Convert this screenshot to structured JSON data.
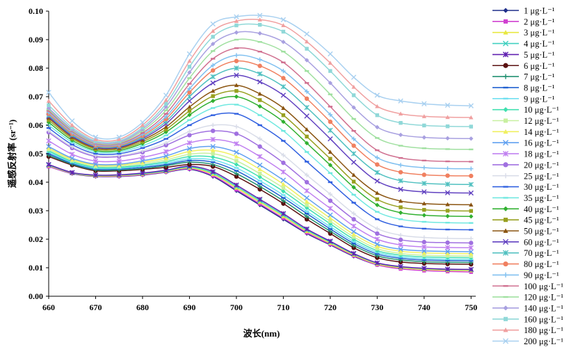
{
  "chart_data": {
    "type": "line",
    "xlabel": "波长(nm)",
    "ylabel": "遥感反射率 (sr⁻¹)",
    "xlim": [
      660,
      751
    ],
    "ylim": [
      0,
      0.1
    ],
    "x_ticks": [
      "660",
      "670",
      "680",
      "690",
      "700",
      "710",
      "720",
      "730",
      "740",
      "750"
    ],
    "y_ticks": [
      "0.00",
      "0.01",
      "0.02",
      "0.03",
      "0.04",
      "0.05",
      "0.06",
      "0.07",
      "0.08",
      "0.09",
      "0.10"
    ],
    "x": [
      660,
      665,
      670,
      675,
      680,
      685,
      690,
      695,
      700,
      705,
      710,
      715,
      720,
      725,
      730,
      735,
      740,
      745,
      750
    ],
    "series": [
      {
        "name": "1 μg·L⁻¹",
        "color": "#1f2f8a",
        "marker": "diamond",
        "values": [
          0.0455,
          0.043,
          0.042,
          0.042,
          0.0425,
          0.0435,
          0.0445,
          0.042,
          0.037,
          0.032,
          0.027,
          0.022,
          0.018,
          0.014,
          0.011,
          0.01,
          0.0095,
          0.0093,
          0.0092
        ]
      },
      {
        "name": "2 μg·L⁻¹",
        "color": "#d040d0",
        "marker": "square",
        "values": [
          0.0455,
          0.0431,
          0.0421,
          0.0421,
          0.0426,
          0.0436,
          0.0447,
          0.0423,
          0.0374,
          0.0324,
          0.0274,
          0.0223,
          0.0182,
          0.0142,
          0.011,
          0.0096,
          0.009,
          0.0087,
          0.0085
        ]
      },
      {
        "name": "3 μg·L⁻¹",
        "color": "#e8e840",
        "marker": "triangle",
        "values": [
          0.0458,
          0.0432,
          0.0422,
          0.0423,
          0.0428,
          0.0438,
          0.045,
          0.0428,
          0.038,
          0.033,
          0.028,
          0.0228,
          0.0186,
          0.0145,
          0.0113,
          0.01,
          0.0094,
          0.0091,
          0.009
        ]
      },
      {
        "name": "4 μg·L⁻¹",
        "color": "#40d0c0",
        "marker": "x",
        "values": [
          0.046,
          0.0433,
          0.0424,
          0.0425,
          0.043,
          0.044,
          0.0453,
          0.0432,
          0.0385,
          0.0335,
          0.0285,
          0.0232,
          0.019,
          0.0148,
          0.0116,
          0.0103,
          0.0097,
          0.0094,
          0.0093
        ]
      },
      {
        "name": "5 μg·L⁻¹",
        "color": "#6020b0",
        "marker": "star",
        "values": [
          0.0462,
          0.0434,
          0.0425,
          0.0426,
          0.0432,
          0.0442,
          0.0456,
          0.0437,
          0.039,
          0.034,
          0.029,
          0.0236,
          0.0193,
          0.015,
          0.0117,
          0.0104,
          0.0098,
          0.0095,
          0.0094
        ]
      },
      {
        "name": "6 μg·L⁻¹",
        "color": "#5a1010",
        "marker": "circle",
        "values": [
          0.049,
          0.046,
          0.044,
          0.044,
          0.0445,
          0.0452,
          0.0462,
          0.0455,
          0.042,
          0.0375,
          0.0325,
          0.027,
          0.022,
          0.017,
          0.0135,
          0.012,
          0.0115,
          0.0113,
          0.0112
        ]
      },
      {
        "name": "7 μg·L⁻¹",
        "color": "#209070",
        "marker": "plus",
        "values": [
          0.0495,
          0.0463,
          0.0443,
          0.0443,
          0.0448,
          0.0458,
          0.047,
          0.0462,
          0.043,
          0.0385,
          0.0335,
          0.028,
          0.0228,
          0.0178,
          0.0142,
          0.0127,
          0.0121,
          0.0119,
          0.0118
        ]
      },
      {
        "name": "8 μg·L⁻¹",
        "color": "#2060d0",
        "marker": "dash",
        "values": [
          0.05,
          0.0466,
          0.0446,
          0.0446,
          0.0452,
          0.0462,
          0.0476,
          0.047,
          0.044,
          0.0395,
          0.0345,
          0.029,
          0.0236,
          0.0185,
          0.0148,
          0.0133,
          0.0127,
          0.0125,
          0.0124
        ]
      },
      {
        "name": "9 μg·L⁻¹",
        "color": "#70e0f0",
        "marker": "dash",
        "values": [
          0.0505,
          0.0469,
          0.0449,
          0.0449,
          0.0456,
          0.0467,
          0.0482,
          0.0478,
          0.045,
          0.0405,
          0.0355,
          0.0298,
          0.0244,
          0.0192,
          0.0154,
          0.0138,
          0.0132,
          0.013,
          0.0129
        ]
      },
      {
        "name": "10 μg·L⁻¹",
        "color": "#40e0b0",
        "marker": "diamond",
        "values": [
          0.051,
          0.0472,
          0.0452,
          0.0452,
          0.046,
          0.0472,
          0.049,
          0.0488,
          0.0462,
          0.0418,
          0.0368,
          0.031,
          0.0254,
          0.02,
          0.016,
          0.0144,
          0.0138,
          0.0136,
          0.0135
        ]
      },
      {
        "name": "12 μg·L⁻¹",
        "color": "#c8f0a0",
        "marker": "square",
        "values": [
          0.0515,
          0.0476,
          0.0456,
          0.0456,
          0.0465,
          0.0478,
          0.0498,
          0.05,
          0.0475,
          0.043,
          0.038,
          0.032,
          0.0263,
          0.0208,
          0.0167,
          0.015,
          0.0144,
          0.0142,
          0.0141
        ]
      },
      {
        "name": "14 μg·L⁻¹",
        "color": "#f0f060",
        "marker": "triangle",
        "values": [
          0.052,
          0.048,
          0.046,
          0.046,
          0.047,
          0.0485,
          0.0508,
          0.0512,
          0.049,
          0.0445,
          0.0393,
          0.0332,
          0.0274,
          0.0217,
          0.0175,
          0.0158,
          0.0152,
          0.015,
          0.0149
        ]
      },
      {
        "name": "16 μg·L⁻¹",
        "color": "#60a0f0",
        "marker": "x",
        "values": [
          0.0525,
          0.0484,
          0.0463,
          0.0463,
          0.0475,
          0.0492,
          0.0518,
          0.0525,
          0.0505,
          0.046,
          0.0407,
          0.0345,
          0.0285,
          0.0227,
          0.0183,
          0.0165,
          0.0159,
          0.0157,
          0.0156
        ]
      },
      {
        "name": "18 μg·L⁻¹",
        "color": "#c080f0",
        "marker": "star",
        "values": [
          0.0545,
          0.0498,
          0.0474,
          0.0474,
          0.0487,
          0.0507,
          0.0538,
          0.055,
          0.0535,
          0.049,
          0.0436,
          0.037,
          0.0308,
          0.0246,
          0.02,
          0.018,
          0.0173,
          0.0171,
          0.017
        ]
      },
      {
        "name": "20 μg·L⁻¹",
        "color": "#a070e0",
        "marker": "circle",
        "values": [
          0.0575,
          0.052,
          0.049,
          0.049,
          0.0505,
          0.053,
          0.0565,
          0.058,
          0.057,
          0.0525,
          0.0468,
          0.04,
          0.0335,
          0.027,
          0.022,
          0.0198,
          0.019,
          0.0188,
          0.0187
        ]
      },
      {
        "name": "25 μg·L⁻¹",
        "color": "#d8dce8",
        "marker": "plus",
        "values": [
          0.058,
          0.0525,
          0.0494,
          0.0494,
          0.051,
          0.0538,
          0.0578,
          0.06,
          0.0595,
          0.0552,
          0.0495,
          0.0425,
          0.0358,
          0.029,
          0.0237,
          0.0214,
          0.0206,
          0.0203,
          0.0202
        ]
      },
      {
        "name": "30 μg·L⁻¹",
        "color": "#3060e0",
        "marker": "dash",
        "values": [
          0.059,
          0.0532,
          0.05,
          0.05,
          0.052,
          0.0552,
          0.06,
          0.0635,
          0.064,
          0.06,
          0.0545,
          0.0472,
          0.04,
          0.0328,
          0.027,
          0.0245,
          0.0237,
          0.0234,
          0.0233
        ]
      },
      {
        "name": "35 μg·L⁻¹",
        "color": "#70e8e0",
        "marker": "dash",
        "values": [
          0.06,
          0.054,
          0.0506,
          0.0506,
          0.0528,
          0.0564,
          0.0618,
          0.066,
          0.0672,
          0.0635,
          0.058,
          0.0506,
          0.0432,
          0.0356,
          0.0296,
          0.027,
          0.0261,
          0.0258,
          0.0257
        ]
      },
      {
        "name": "40 μg·L⁻¹",
        "color": "#30b030",
        "marker": "diamond",
        "values": [
          0.061,
          0.0547,
          0.0511,
          0.0511,
          0.0536,
          0.0576,
          0.0636,
          0.0685,
          0.07,
          0.0666,
          0.0612,
          0.0537,
          0.046,
          0.0382,
          0.032,
          0.0293,
          0.0284,
          0.0281,
          0.028
        ]
      },
      {
        "name": "45 μg·L⁻¹",
        "color": "#98a020",
        "marker": "square",
        "values": [
          0.0618,
          0.0553,
          0.0516,
          0.0516,
          0.0542,
          0.0585,
          0.065,
          0.0702,
          0.072,
          0.0688,
          0.0635,
          0.056,
          0.0482,
          0.0402,
          0.034,
          0.0312,
          0.0303,
          0.03,
          0.0299
        ]
      },
      {
        "name": "50 μg·L⁻¹",
        "color": "#8a5410",
        "marker": "triangle",
        "values": [
          0.0625,
          0.0558,
          0.052,
          0.052,
          0.0548,
          0.0594,
          0.0664,
          0.072,
          0.074,
          0.071,
          0.066,
          0.0585,
          0.0506,
          0.0425,
          0.0362,
          0.0334,
          0.0325,
          0.0322,
          0.0321
        ]
      },
      {
        "name": "60 μg·L⁻¹",
        "color": "#6040c0",
        "marker": "x",
        "values": [
          0.063,
          0.0562,
          0.0523,
          0.0523,
          0.0553,
          0.0605,
          0.0685,
          0.0748,
          0.0775,
          0.0752,
          0.0705,
          0.0632,
          0.0552,
          0.047,
          0.0404,
          0.0375,
          0.0366,
          0.0363,
          0.0362
        ]
      },
      {
        "name": "70 μg·L⁻¹",
        "color": "#50c0c0",
        "marker": "star",
        "values": [
          0.0635,
          0.0566,
          0.0526,
          0.0526,
          0.0558,
          0.0613,
          0.07,
          0.077,
          0.08,
          0.078,
          0.0735,
          0.0662,
          0.0582,
          0.05,
          0.0434,
          0.0405,
          0.0396,
          0.0393,
          0.0392
        ]
      },
      {
        "name": "80 μg·L⁻¹",
        "color": "#f08060",
        "marker": "circle",
        "values": [
          0.064,
          0.057,
          0.0529,
          0.0529,
          0.0563,
          0.0622,
          0.0715,
          0.0792,
          0.0825,
          0.0808,
          0.0765,
          0.0693,
          0.0612,
          0.0528,
          0.0462,
          0.0435,
          0.0426,
          0.0423,
          0.0422
        ]
      },
      {
        "name": "90 μg·L⁻¹",
        "color": "#80c0f0",
        "marker": "plus",
        "values": [
          0.0645,
          0.0574,
          0.0532,
          0.0532,
          0.0568,
          0.063,
          0.0728,
          0.081,
          0.0845,
          0.083,
          0.079,
          0.0718,
          0.0637,
          0.0552,
          0.0486,
          0.046,
          0.0451,
          0.0448,
          0.0447
        ]
      },
      {
        "name": "100 μg·L⁻¹",
        "color": "#d07090",
        "marker": "dash",
        "values": [
          0.065,
          0.0578,
          0.0535,
          0.0535,
          0.0573,
          0.064,
          0.0745,
          0.0833,
          0.087,
          0.0858,
          0.082,
          0.0748,
          0.0665,
          0.058,
          0.0512,
          0.0485,
          0.0476,
          0.0473,
          0.0472
        ]
      },
      {
        "name": "120 μg·L⁻¹",
        "color": "#a0e0a0",
        "marker": "dash",
        "values": [
          0.0655,
          0.0582,
          0.0538,
          0.0538,
          0.058,
          0.0652,
          0.0765,
          0.086,
          0.09,
          0.0892,
          0.0858,
          0.079,
          0.0708,
          0.0622,
          0.0555,
          0.0528,
          0.0519,
          0.0516,
          0.0515
        ]
      },
      {
        "name": "140 μg·L⁻¹",
        "color": "#a8a0e0",
        "marker": "diamond",
        "values": [
          0.066,
          0.0586,
          0.0541,
          0.0541,
          0.0586,
          0.0664,
          0.0785,
          0.0885,
          0.0925,
          0.0922,
          0.0892,
          0.0828,
          0.0748,
          0.0662,
          0.0593,
          0.0566,
          0.0557,
          0.0554,
          0.0553
        ]
      },
      {
        "name": "160 μg·L⁻¹",
        "color": "#90d8d8",
        "marker": "square",
        "values": [
          0.067,
          0.0592,
          0.0545,
          0.0545,
          0.0592,
          0.0675,
          0.0805,
          0.091,
          0.095,
          0.0952,
          0.0928,
          0.0868,
          0.079,
          0.0705,
          0.0635,
          0.0608,
          0.0599,
          0.0596,
          0.0595
        ]
      },
      {
        "name": "180 μg·L⁻¹",
        "color": "#f0a0a0",
        "marker": "triangle",
        "values": [
          0.0685,
          0.06,
          0.055,
          0.055,
          0.06,
          0.0688,
          0.0825,
          0.093,
          0.0965,
          0.097,
          0.095,
          0.0893,
          0.0818,
          0.0734,
          0.0666,
          0.064,
          0.0631,
          0.0628,
          0.0627
        ]
      },
      {
        "name": "200 μg·L⁻¹",
        "color": "#a8d0f0",
        "marker": "x",
        "values": [
          0.0715,
          0.0615,
          0.0558,
          0.0558,
          0.061,
          0.0705,
          0.085,
          0.0955,
          0.098,
          0.0985,
          0.097,
          0.092,
          0.085,
          0.0768,
          0.0705,
          0.0685,
          0.0675,
          0.067,
          0.0668
        ]
      }
    ]
  }
}
